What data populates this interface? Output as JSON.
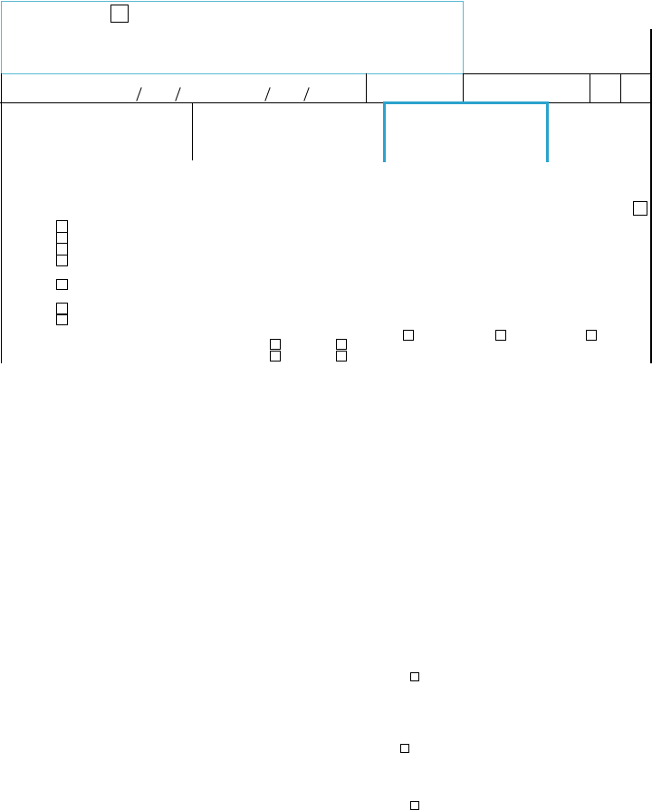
{
  "colors": {
    "accent": "#2aa3cc",
    "header_border": "#5bb8d4",
    "line": "#000000",
    "background": "#ffffff"
  },
  "form": {
    "checkboxes_checked": [
      false,
      false,
      false,
      false,
      false,
      false,
      false,
      false,
      false,
      false,
      false,
      false,
      false,
      false,
      false,
      false,
      false,
      false,
      false,
      false
    ]
  }
}
